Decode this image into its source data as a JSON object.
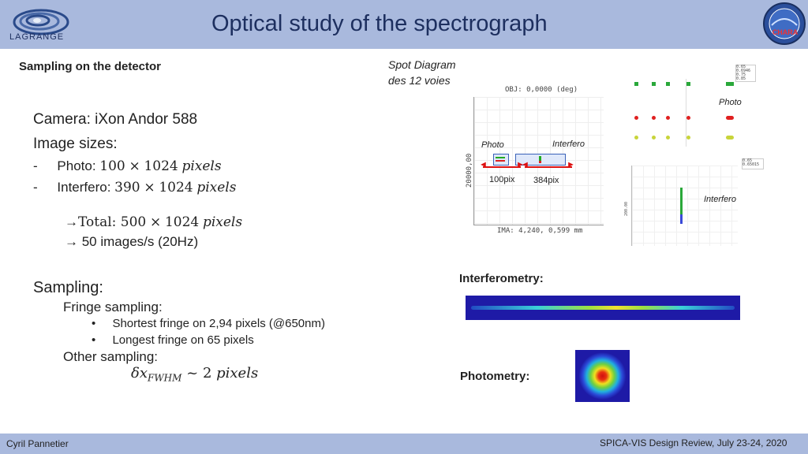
{
  "header": {
    "title": "Optical study of the spectrograph",
    "logo_text": "LAGRANGE",
    "badge_text": "CHARA"
  },
  "left": {
    "section_title": "Sampling on the detector",
    "camera": "Camera: iXon Andor 588",
    "image_sizes": "Image sizes:",
    "photo_label": "Photo: ",
    "photo_a": "100",
    "photo_b": "1024",
    "interf_label": "Interfero: ",
    "interf_a": "390",
    "interf_b": "1024",
    "total_label": "Total: ",
    "total_a": "500",
    "total_b": "1024",
    "pixels_word": "pixels",
    "times": "×",
    "arrow": "→",
    "dash": "-",
    "bullet": "•",
    "rate": " 50 images/s (20Hz)",
    "sampling": "Sampling:",
    "fringe": "Fringe sampling:",
    "shortest": "Shortest fringe on 2,94 pixels (@650nm)",
    "longest": "Longest fringe on 65 pixels",
    "other": "Other sampling:",
    "delta": "δx",
    "fwhm": "FWHM",
    "approx": " ~ 2 ",
    "two_pix": "pixels"
  },
  "right": {
    "spot_title_1": "Spot Diagram",
    "spot_title_2": "des 12 voies",
    "obj": "OBJ: 0,0000 (deg)",
    "ima": "IMA: 4,240, 0,599 mm",
    "yaxis": "20000,00",
    "photo_tag": "Photo",
    "interf_tag": "Interfero",
    "px100": "100pix",
    "px384": "384pix",
    "zoom_photo": "Photo",
    "zoom_interf": "Interfero",
    "legend1": [
      "0.65",
      "0.6946",
      "0.75",
      "0.85"
    ],
    "legend2": [
      "0.65",
      "0.65015"
    ],
    "small_axis": "200.00",
    "interferometry": "Interferometry:",
    "photometry": "Photometry:"
  },
  "footer": {
    "author": "Cyril Pannetier",
    "event": "SPICA-VIS Design Review, July 23-24, 2020"
  }
}
